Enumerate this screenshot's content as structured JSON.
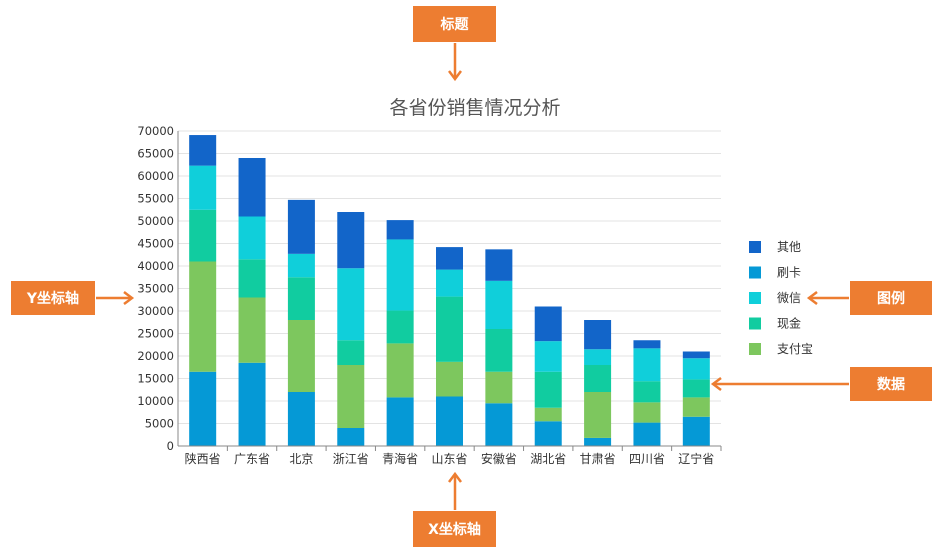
{
  "callouts": {
    "title": "标题",
    "yaxis": "Y坐标轴",
    "legend": "图例",
    "data": "数据",
    "xaxis": "X坐标轴"
  },
  "colors": {
    "callout": "#ED7D31",
    "series": [
      "#0599D6",
      "#7DC75E",
      "#11CCA0",
      "#10CFDA",
      "#1265C9"
    ]
  },
  "chart_data": {
    "type": "bar",
    "stacked": true,
    "title": "各省份销售情况分析",
    "xlabel": "",
    "ylabel": "",
    "ylim": [
      0,
      70000
    ],
    "yticks": [
      0,
      5000,
      10000,
      15000,
      20000,
      25000,
      30000,
      35000,
      40000,
      45000,
      50000,
      55000,
      60000,
      65000,
      70000
    ],
    "grid": true,
    "legend_position": "right",
    "categories": [
      "陕西省",
      "广东省",
      "北京",
      "浙江省",
      "青海省",
      "山东省",
      "安徽省",
      "湖北省",
      "甘肃省",
      "四川省",
      "辽宁省"
    ],
    "series": [
      {
        "name": "刷卡",
        "values": [
          16500,
          18500,
          12000,
          4000,
          10800,
          11000,
          9500,
          5500,
          1800,
          5200,
          6500
        ]
      },
      {
        "name": "支付宝",
        "values": [
          24500,
          14500,
          16000,
          14000,
          12000,
          7700,
          7000,
          3000,
          10200,
          4500,
          4300
        ]
      },
      {
        "name": "现金",
        "values": [
          11500,
          8500,
          9500,
          5500,
          7300,
          14500,
          9500,
          8000,
          6000,
          4700,
          4000
        ]
      },
      {
        "name": "微信",
        "values": [
          9800,
          9500,
          5200,
          16000,
          15800,
          6000,
          10700,
          6800,
          3500,
          7300,
          4700
        ]
      },
      {
        "name": "其他",
        "values": [
          6800,
          13000,
          12000,
          12500,
          4300,
          5000,
          7000,
          7700,
          6500,
          1800,
          1500
        ]
      }
    ],
    "legend_order": [
      "其他",
      "刷卡",
      "微信",
      "现金",
      "支付宝"
    ]
  }
}
